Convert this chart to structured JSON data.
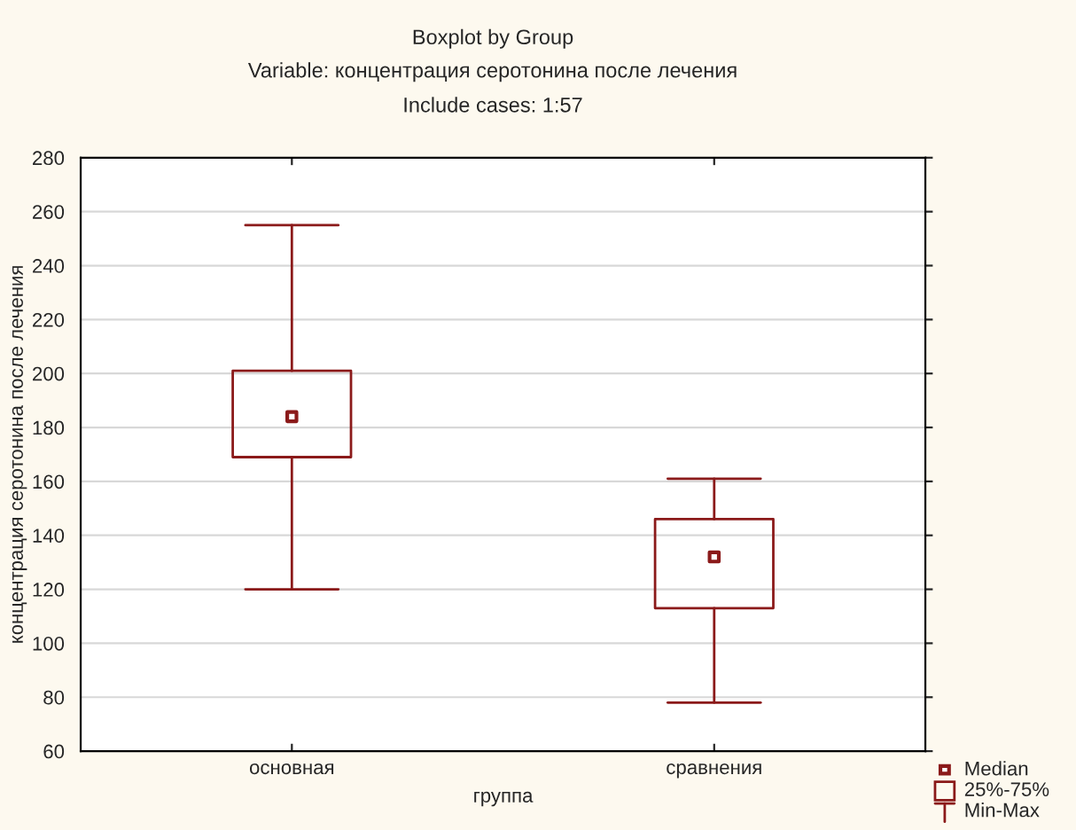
{
  "chart_data": {
    "type": "box",
    "title": "Boxplot by Group",
    "subtitle": "Variable: концентрация серотонина после лечения\nInclude cases: 1:57",
    "xlabel": "группа",
    "ylabel": "концентрация серотонина после лечения",
    "categories": [
      "основная",
      "сравнения"
    ],
    "boxes": [
      {
        "low": 120,
        "q1": 169,
        "median": 184,
        "q3": 201,
        "high": 255
      },
      {
        "low": 78,
        "q1": 113,
        "median": 132,
        "q3": 146,
        "high": 161
      }
    ],
    "color": "#8b1a1a",
    "ylim": [
      60,
      280
    ],
    "yticks": [
      60,
      80,
      100,
      120,
      140,
      160,
      180,
      200,
      220,
      240,
      260,
      280
    ],
    "grid": "y",
    "annotations": [
      "Median",
      "25%-75%",
      "Min-Max"
    ]
  }
}
